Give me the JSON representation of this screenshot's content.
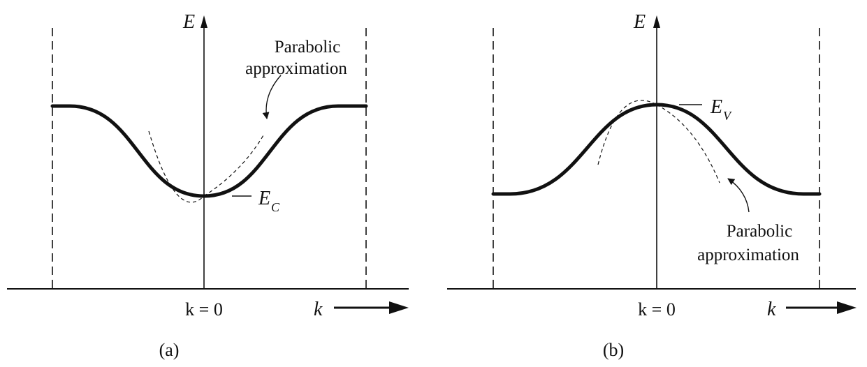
{
  "panels": [
    {
      "caption": "(a)",
      "axis_label_energy": "E",
      "axis_label_k": "k",
      "origin_label": "k = 0",
      "band_edge_main": "E",
      "band_edge_sub": "C",
      "annotation_line1": "Parabolic",
      "annotation_line2": "approximation",
      "band_shape": "conduction-band-minimum"
    },
    {
      "caption": "(b)",
      "axis_label_energy": "E",
      "axis_label_k": "k",
      "origin_label": "k = 0",
      "band_edge_main": "E",
      "band_edge_sub": "V",
      "annotation_line1": "Parabolic",
      "annotation_line2": "approximation",
      "band_shape": "valence-band-maximum"
    }
  ],
  "colors": {
    "ink": "#111111",
    "background": "#ffffff"
  }
}
